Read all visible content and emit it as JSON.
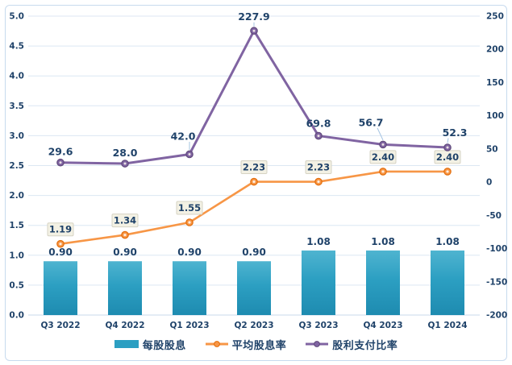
{
  "chart_data": {
    "type": "combo-bar-line",
    "categories": [
      "Q3 2022",
      "Q4 2022",
      "Q1 2023",
      "Q2 2023",
      "Q3 2023",
      "Q4 2023",
      "Q1 2024"
    ],
    "series": [
      {
        "name": "每股股息",
        "type": "bar",
        "axis": "left",
        "values": [
          0.9,
          0.9,
          0.9,
          0.9,
          1.08,
          1.08,
          1.08
        ],
        "labels": [
          "0.90",
          "0.90",
          "0.90",
          "0.90",
          "1.08",
          "1.08",
          "1.08"
        ]
      },
      {
        "name": "平均股息率",
        "type": "line",
        "axis": "left",
        "label_style": "boxed",
        "values": [
          1.19,
          1.34,
          1.55,
          2.23,
          2.23,
          2.4,
          2.4
        ],
        "labels": [
          "1.19",
          "1.34",
          "1.55",
          "2.23",
          "2.23",
          "2.40",
          "2.40"
        ]
      },
      {
        "name": "股利支付比率",
        "type": "line",
        "axis": "right",
        "values": [
          29.6,
          28.0,
          42.0,
          227.9,
          69.8,
          56.7,
          52.3
        ],
        "labels": [
          "29.6",
          "28.0",
          "42.0",
          "227.9",
          "69.8",
          "56.7",
          "52.3"
        ],
        "label_offsets": [
          [
            0,
            -9,
            0
          ],
          [
            0,
            -9,
            0
          ],
          [
            -8,
            -18,
            1
          ],
          [
            0,
            -13,
            1
          ],
          [
            0,
            -11,
            0
          ],
          [
            -15,
            -23,
            1
          ],
          [
            9,
            -14,
            1
          ]
        ]
      }
    ],
    "left_axis": {
      "min": 0,
      "max": 5,
      "ticks": [
        "5.0",
        "4.5",
        "4.0",
        "3.5",
        "3.0",
        "2.5",
        "2.0",
        "1.5",
        "1.0",
        "0.5",
        "0.0"
      ]
    },
    "right_axis": {
      "min": -200,
      "max": 250,
      "ticks": [
        "250",
        "200",
        "150",
        "100",
        "50",
        "0",
        "-50",
        "-100",
        "-150",
        "-200"
      ]
    },
    "grid": true,
    "legend_position": "bottom-center",
    "legend": [
      {
        "label": "每股股息",
        "swatch": "bar"
      },
      {
        "label": "平均股息率",
        "swatch": "line-orange"
      },
      {
        "label": "股利支付比率",
        "swatch": "line-purple"
      }
    ],
    "colors": {
      "bar_top": "#4fb4d0",
      "bar_mid": "#2c9fc2",
      "bar_bottom": "#1e8bb0",
      "yield_line": "#f79646",
      "yield_marker_edge": "#e36c09",
      "payout_line": "#8064a2",
      "payout_marker_edge": "#5f497a",
      "marker_center": "#fdf6ee",
      "text_navy": "#1f4269",
      "gridline": "#dce7f3",
      "baseline": "#c9daeb",
      "panel_border": "#c7daee",
      "label_box_bg": "#f3f1e4",
      "label_box_border": "#d6d3c4",
      "leader": "#a5c4e2"
    }
  }
}
